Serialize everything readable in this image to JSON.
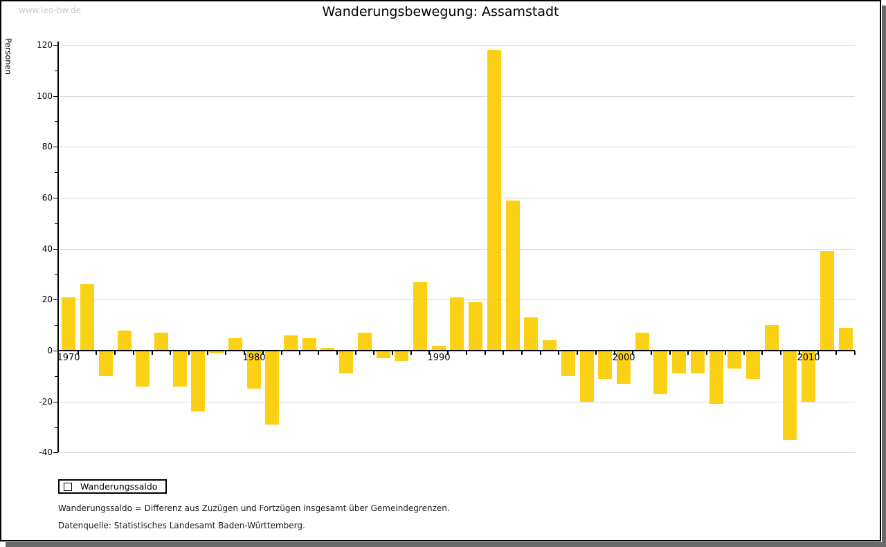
{
  "window": {
    "watermark": "www.leo-bw.de",
    "title": "Wanderungsbewegung: Assamstadt"
  },
  "legend": {
    "label": "Wanderungssaldo"
  },
  "footnotes": {
    "definition": "Wanderungssaldo = Differenz aus Zuzügen und Fortzügen insgesamt über Gemeindegrenzen.",
    "source": "Datenquelle: Statistisches Landesamt Baden-Württemberg."
  },
  "colors": {
    "bar": "#FBD116",
    "grid": "#D9D9D9",
    "axis": "#000000",
    "watermark": "#C9C9C9",
    "shadow": "#6A6A6A"
  },
  "chart_data": {
    "type": "bar",
    "title": "Wanderungsbewegung: Assamstadt",
    "xlabel": "",
    "ylabel": "Personen",
    "categories": [
      1970,
      1971,
      1972,
      1973,
      1974,
      1975,
      1976,
      1977,
      1978,
      1979,
      1980,
      1981,
      1982,
      1983,
      1984,
      1985,
      1986,
      1987,
      1988,
      1989,
      1990,
      1991,
      1992,
      1993,
      1994,
      1995,
      1996,
      1997,
      1998,
      1999,
      2000,
      2001,
      2002,
      2003,
      2004,
      2005,
      2006,
      2007,
      2008,
      2009,
      2010,
      2011,
      2012
    ],
    "series": [
      {
        "name": "Wanderungssaldo",
        "values": [
          21,
          26,
          -10,
          8,
          -14,
          7,
          -14,
          -24,
          -1,
          5,
          -15,
          -29,
          6,
          5,
          1,
          -9,
          7,
          -3,
          -4,
          27,
          2,
          21,
          19,
          118,
          59,
          13,
          4,
          -10,
          -20,
          -11,
          -13,
          7,
          -17,
          -9,
          -9,
          -21,
          -7,
          -11,
          10,
          -35,
          -20,
          39,
          9
        ]
      }
    ],
    "ylim": [
      -40,
      120
    ],
    "ytick_major_step": 20,
    "ytick_minor_step": 10,
    "xticks_labeled": [
      1970,
      1980,
      1990,
      2000,
      2010
    ],
    "grid": true,
    "legend_position": "bottom-left",
    "bar_color": "#FBD116"
  }
}
